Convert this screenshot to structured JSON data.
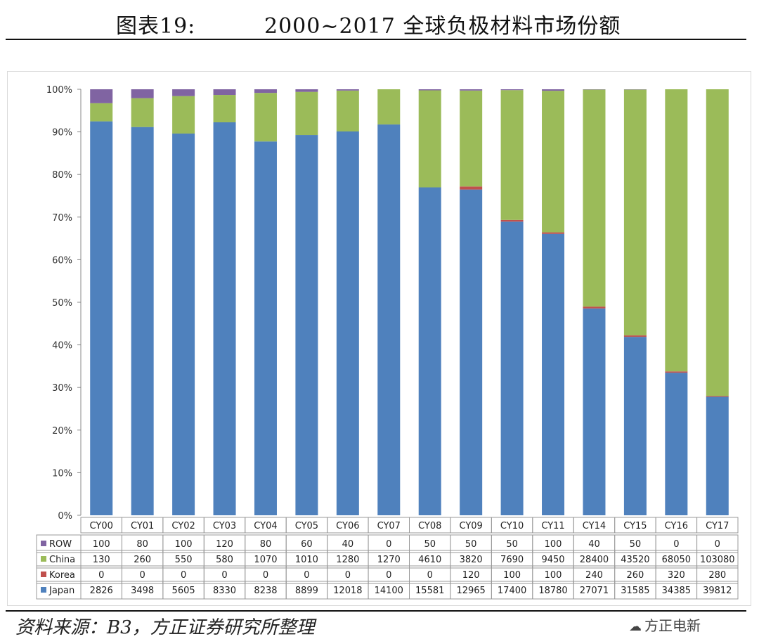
{
  "header": {
    "label": "图表19:",
    "title": "2000~2017 全球负极材料市场份额"
  },
  "footer": {
    "source": "资料来源：B3，方正证券研究所整理",
    "watermark_icon": "wechat-icon",
    "watermark": "方正电新"
  },
  "colors": {
    "ROW": "#8064a2",
    "China": "#9bbb59",
    "Korea": "#c0504d",
    "Japan": "#4f81bd"
  },
  "chart_data": {
    "type": "bar",
    "stacked": "percent",
    "categories": [
      "CY00",
      "CY01",
      "CY02",
      "CY03",
      "CY04",
      "CY05",
      "CY06",
      "CY07",
      "CY08",
      "CY09",
      "CY10",
      "CY11",
      "CY14",
      "CY15",
      "CY16",
      "CY17"
    ],
    "series": [
      {
        "name": "ROW",
        "values": [
          100,
          80,
          100,
          120,
          80,
          60,
          40,
          0,
          50,
          50,
          50,
          100,
          40,
          50,
          0,
          0
        ]
      },
      {
        "name": "China",
        "values": [
          130,
          260,
          550,
          580,
          1070,
          1010,
          1280,
          1270,
          4610,
          3820,
          7690,
          9450,
          28400,
          43520,
          68050,
          103080
        ]
      },
      {
        "name": "Korea",
        "values": [
          0,
          0,
          0,
          0,
          0,
          0,
          0,
          0,
          0,
          120,
          100,
          100,
          240,
          260,
          320,
          280
        ]
      },
      {
        "name": "Japan",
        "values": [
          2826,
          3498,
          5605,
          8330,
          8238,
          8899,
          12018,
          14100,
          15581,
          12965,
          17400,
          18780,
          27071,
          31585,
          34385,
          39812
        ]
      }
    ],
    "stack_order": [
      "Japan",
      "Korea",
      "China",
      "ROW"
    ],
    "yticks": [
      "0%",
      "10%",
      "20%",
      "30%",
      "40%",
      "50%",
      "60%",
      "70%",
      "80%",
      "90%",
      "100%"
    ],
    "ylim": [
      0,
      100
    ],
    "grid": false,
    "legend": "data-table"
  }
}
